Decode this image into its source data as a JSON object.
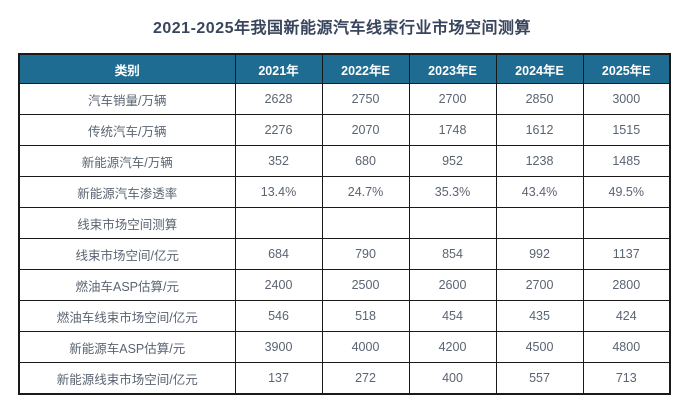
{
  "title": "2021-2025年我国新能源汽车线束行业市场空间测算",
  "colors": {
    "header_bg": "#1e6c91",
    "header_text": "#ffffff",
    "title_text": "#39455c",
    "body_text": "#5a6472",
    "border": "#1a1a1a"
  },
  "chart_data": {
    "type": "table",
    "title": "2021-2025年我国新能源汽车线束行业市场空间测算",
    "columns": [
      "类别",
      "2021年",
      "2022年E",
      "2023年E",
      "2024年E",
      "2025年E"
    ],
    "rows": [
      {
        "label": "汽车销量/万辆",
        "values": [
          "2628",
          "2750",
          "2700",
          "2850",
          "3000"
        ]
      },
      {
        "label": "传统汽车/万辆",
        "values": [
          "2276",
          "2070",
          "1748",
          "1612",
          "1515"
        ]
      },
      {
        "label": "新能源汽车/万辆",
        "values": [
          "352",
          "680",
          "952",
          "1238",
          "1485"
        ]
      },
      {
        "label": "新能源汽车渗透率",
        "values": [
          "13.4%",
          "24.7%",
          "35.3%",
          "43.4%",
          "49.5%"
        ]
      },
      {
        "label": "线束市场空间测算",
        "values": [
          "",
          "",
          "",
          "",
          ""
        ]
      },
      {
        "label": "线束市场空间/亿元",
        "values": [
          "684",
          "790",
          "854",
          "992",
          "1137"
        ]
      },
      {
        "label": "燃油车ASP估算/元",
        "values": [
          "2400",
          "2500",
          "2600",
          "2700",
          "2800"
        ]
      },
      {
        "label": "燃油车线束市场空间/亿元",
        "values": [
          "546",
          "518",
          "454",
          "435",
          "424"
        ]
      },
      {
        "label": "新能源车ASP估算/元",
        "values": [
          "3900",
          "4000",
          "4200",
          "4500",
          "4800"
        ]
      },
      {
        "label": "新能源线束市场空间/亿元",
        "values": [
          "137",
          "272",
          "400",
          "557",
          "713"
        ]
      }
    ]
  }
}
